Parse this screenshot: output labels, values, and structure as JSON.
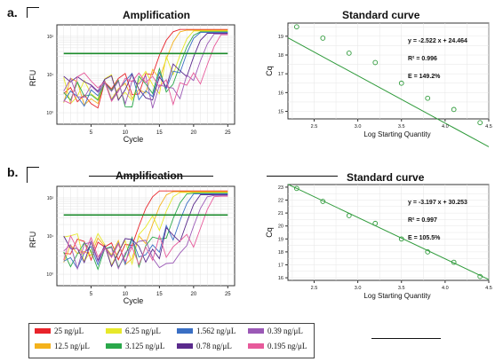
{
  "panels": [
    {
      "label": "a.",
      "amp": {
        "title": "Amplification",
        "ylabel": "RFU",
        "xlabel": "Cycle",
        "xticks": [
          "5",
          "10",
          "15",
          "20",
          "25"
        ],
        "yticks": [
          "10⁰",
          "10¹",
          "10²"
        ],
        "threshold_log": 1.55
      },
      "std": {
        "title": "Standard curve",
        "ylabel": "Cq",
        "xlabel": "Log Starting Quantity",
        "xticks": [
          "2.5",
          "3.0",
          "3.5",
          "4.0",
          "4.5"
        ],
        "yticks": [
          "15",
          "16",
          "17",
          "18",
          "19"
        ],
        "equation": "y = -2.522 x + 24.464",
        "r2": "R² = 0.996",
        "eff": "E = 149.2%"
      }
    },
    {
      "label": "b.",
      "amp": {
        "title": "Amplification",
        "ylabel": "RFU",
        "xlabel": "Cycle",
        "xticks": [
          "5",
          "10",
          "15",
          "20",
          "25"
        ],
        "yticks": [
          "10⁰",
          "10¹",
          "10²"
        ],
        "threshold_log": 1.55
      },
      "std": {
        "title": "Standard curve",
        "ylabel": "Cq",
        "xlabel": "Log Starting Quantity",
        "xticks": [
          "2.5",
          "3.0",
          "3.5",
          "4.0",
          "4.5"
        ],
        "yticks": [
          "16",
          "17",
          "18",
          "19",
          "20",
          "21",
          "22",
          "23"
        ],
        "equation": "y = -3.197 x + 30.253",
        "r2": "R² = 0.997",
        "eff": "E = 105.5%"
      }
    }
  ],
  "legend": [
    {
      "label": "25 ng/μL",
      "color": "#e8232a"
    },
    {
      "label": "12.5 ng/μL",
      "color": "#f4b21c"
    },
    {
      "label": "6.25 ng/μL",
      "color": "#e7e82a"
    },
    {
      "label": "3.125 ng/μL",
      "color": "#2aa84a"
    },
    {
      "label": "1.562 ng/μL",
      "color": "#3a6fc4"
    },
    {
      "label": "0.78 ng/μL",
      "color": "#5a2a8c"
    },
    {
      "label": "0.39 ng/μL",
      "color": "#9b59b6"
    },
    {
      "label": "0.195 ng/μL",
      "color": "#e75a9b"
    }
  ],
  "chart_data": [
    {
      "type": "line",
      "title": "Amplification",
      "xlabel": "Cycle",
      "ylabel": "RFU",
      "xlim": [
        0,
        26
      ],
      "ylim_log10": [
        -0.3,
        2.3
      ],
      "threshold": 35,
      "series_cq": [
        14.3,
        15.6,
        17.5,
        17.8,
        18.3,
        19.6,
        20.6,
        21.9
      ],
      "colors": [
        "#e8232a",
        "#f4b21c",
        "#e7e82a",
        "#2aa84a",
        "#3a6fc4",
        "#5a2a8c",
        "#9b59b6",
        "#e75a9b"
      ]
    },
    {
      "type": "scatter",
      "title": "Standard curve",
      "xlabel": "Log Starting Quantity",
      "ylabel": "Cq",
      "xlim": [
        2.2,
        4.5
      ],
      "ylim": [
        14.6,
        19.7
      ],
      "x": [
        2.3,
        2.6,
        2.9,
        3.2,
        3.5,
        3.8,
        4.1,
        4.4
      ],
      "y": [
        19.5,
        18.9,
        18.1,
        17.6,
        16.5,
        15.7,
        15.1,
        14.4
      ],
      "fit": {
        "slope": -2.522,
        "intercept": 24.464
      },
      "annotations": [
        "y = -2.522 x + 24.464",
        "R² = 0.996",
        "E = 149.2%"
      ]
    },
    {
      "type": "line",
      "title": "Amplification",
      "xlabel": "Cycle",
      "ylabel": "RFU",
      "xlim": [
        0,
        26
      ],
      "ylim_log10": [
        -0.3,
        2.3
      ],
      "threshold": 35,
      "series_cq": [
        11.8,
        13.8,
        15.2,
        16.4,
        17.6,
        18.8,
        19.8,
        21.0
      ],
      "colors": [
        "#e8232a",
        "#f4b21c",
        "#e7e82a",
        "#2aa84a",
        "#3a6fc4",
        "#5a2a8c",
        "#9b59b6",
        "#e75a9b"
      ]
    },
    {
      "type": "scatter",
      "title": "Standard curve",
      "xlabel": "Log Starting Quantity",
      "ylabel": "Cq",
      "xlim": [
        2.2,
        4.5
      ],
      "ylim": [
        15.8,
        23.2
      ],
      "x": [
        2.3,
        2.6,
        2.9,
        3.2,
        3.5,
        3.8,
        4.1,
        4.4
      ],
      "y": [
        22.9,
        21.9,
        20.8,
        20.2,
        19.0,
        18.0,
        17.2,
        16.1
      ],
      "fit": {
        "slope": -3.197,
        "intercept": 30.253
      },
      "annotations": [
        "y = -3.197 x + 30.253",
        "R² = 0.997",
        "E = 105.5%"
      ]
    }
  ]
}
